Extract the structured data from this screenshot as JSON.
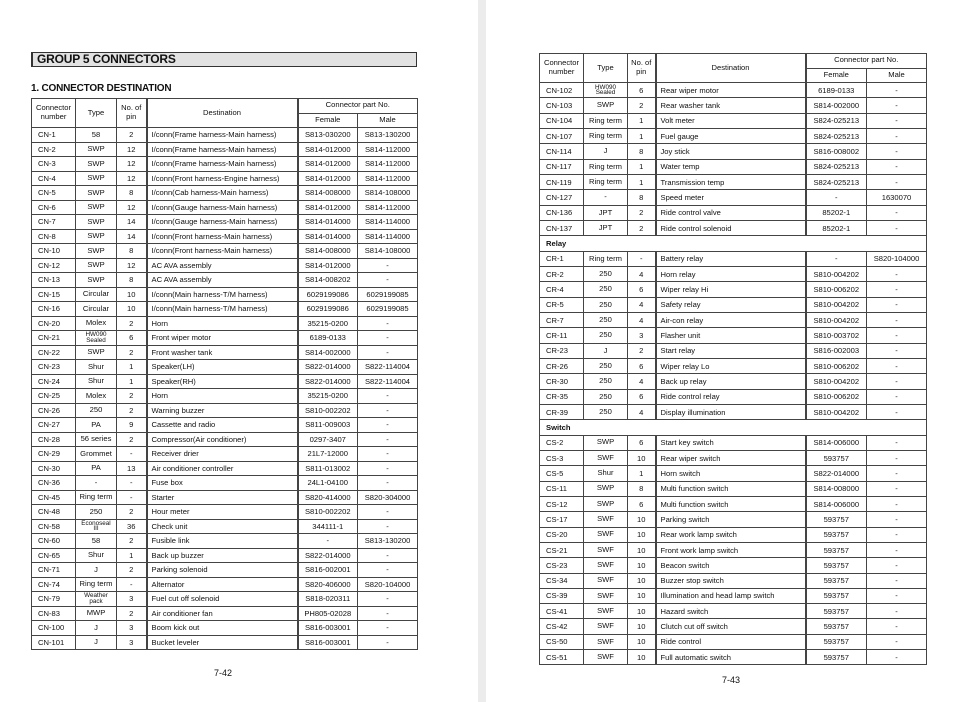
{
  "left_page": {
    "group_title": "GROUP 5  CONNECTORS",
    "section_title": "1. CONNECTOR DESTINATION",
    "page_number": "7-42"
  },
  "right_page": {
    "page_number": "7-43"
  },
  "table_header": {
    "connector_number": "Connector\nnumber",
    "type": "Type",
    "pins": "No. of\npin",
    "destination": "Destination",
    "part_no": "Connector part No.",
    "female": "Female",
    "male": "Male"
  },
  "left_rows": [
    [
      "CN-1",
      "58",
      "2",
      "I/conn(Frame harness-Main harness)",
      "S813-030200",
      "S813-130200"
    ],
    [
      "CN-2",
      "SWP",
      "12",
      "I/conn(Frame harness-Main harness)",
      "S814-012000",
      "S814-112000"
    ],
    [
      "CN-3",
      "SWP",
      "12",
      "I/conn(Frame harness-Main harness)",
      "S814-012000",
      "S814-112000"
    ],
    [
      "CN-4",
      "SWP",
      "12",
      "I/conn(Front harness-Engine harness)",
      "S814-012000",
      "S814-112000"
    ],
    [
      "CN-5",
      "SWP",
      "8",
      "I/conn(Cab harness-Main harness)",
      "S814-008000",
      "S814-108000"
    ],
    [
      "CN-6",
      "SWP",
      "12",
      "I/conn(Gauge harness-Main harness)",
      "S814-012000",
      "S814-112000"
    ],
    [
      "CN-7",
      "SWP",
      "14",
      "I/conn(Gauge harness-Main harness)",
      "S814-014000",
      "S814-114000"
    ],
    [
      "CN-8",
      "SWP",
      "14",
      "I/conn(Front harness-Main harness)",
      "S814-014000",
      "S814-114000"
    ],
    [
      "CN-10",
      "SWP",
      "8",
      "I/conn(Front harness-Main harness)",
      "S814-008000",
      "S814-108000"
    ],
    [
      "CN-12",
      "SWP",
      "12",
      "AC AVA assembly",
      "S814-012000",
      "-"
    ],
    [
      "CN-13",
      "SWP",
      "8",
      "AC AVA assembly",
      "S814-008202",
      "-"
    ],
    [
      "CN-15",
      "Circular",
      "10",
      "I/conn(Main harness-T/M harness)",
      "6029199086",
      "6029199085"
    ],
    [
      "CN-16",
      "Circular",
      "10",
      "I/conn(Main harness-T/M harness)",
      "6029199086",
      "6029199085"
    ],
    [
      "CN-20",
      "Molex",
      "2",
      "Horn",
      "35215-0200",
      "-"
    ],
    [
      "CN-21",
      "HW090\nSealed",
      "6",
      "Front wiper motor",
      "6189-0133",
      "-"
    ],
    [
      "CN-22",
      "SWP",
      "2",
      "Front washer tank",
      "S814-002000",
      "-"
    ],
    [
      "CN-23",
      "Shur",
      "1",
      "Speaker(LH)",
      "S822-014000",
      "S822-114004"
    ],
    [
      "CN-24",
      "Shur",
      "1",
      "Speaker(RH)",
      "S822-014000",
      "S822-114004"
    ],
    [
      "CN-25",
      "Molex",
      "2",
      "Horn",
      "35215-0200",
      "-"
    ],
    [
      "CN-26",
      "250",
      "2",
      "Warning buzzer",
      "S810-002202",
      "-"
    ],
    [
      "CN-27",
      "PA",
      "9",
      "Cassette and radio",
      "S811-009003",
      "-"
    ],
    [
      "CN-28",
      "56 series",
      "2",
      "Compressor(Air conditioner)",
      "0297-3407",
      "-"
    ],
    [
      "CN-29",
      "Grommet",
      "-",
      "Receiver drier",
      "21L7-12000",
      "-"
    ],
    [
      "CN-30",
      "PA",
      "13",
      "Air conditioner controller",
      "S811-013002",
      "-"
    ],
    [
      "CN-36",
      "-",
      "-",
      "Fuse box",
      "24L1-04100",
      "-"
    ],
    [
      "CN-45",
      "Ring term",
      "-",
      "Starter",
      "S820-414000",
      "S820-304000"
    ],
    [
      "CN-48",
      "250",
      "2",
      "Hour meter",
      "S810-002202",
      "-"
    ],
    [
      "CN-58",
      "Econoseal\nIII",
      "36",
      "Check unit",
      "344111-1",
      "-"
    ],
    [
      "CN-60",
      "58",
      "2",
      "Fusible link",
      "-",
      "S813-130200"
    ],
    [
      "CN-65",
      "Shur",
      "1",
      "Back up buzzer",
      "S822-014000",
      "-"
    ],
    [
      "CN-71",
      "J",
      "2",
      "Parking solenoid",
      "S816-002001",
      "-"
    ],
    [
      "CN-74",
      "Ring term",
      "-",
      "Alternator",
      "S820-406000",
      "S820-104000"
    ],
    [
      "CN-79",
      "Weather\npack",
      "3",
      "Fuel cut off solenoid",
      "S818-020311",
      "-"
    ],
    [
      "CN-83",
      "MWP",
      "2",
      "Air conditioner fan",
      "PH805-02028",
      "-"
    ],
    [
      "CN-100",
      "J",
      "3",
      "Boom kick out",
      "S816-003001",
      "-"
    ],
    [
      "CN-101",
      "J",
      "3",
      "Bucket leveler",
      "S816-003001",
      "-"
    ]
  ],
  "right_rows": [
    [
      "CN-102",
      "HW090\nSealed",
      "6",
      "Rear wiper motor",
      "6189-0133",
      "-"
    ],
    [
      "CN-103",
      "SWP",
      "2",
      "Rear washer tank",
      "S814-002000",
      "-"
    ],
    [
      "CN-104",
      "Ring term",
      "1",
      "Volt meter",
      "S824-025213",
      "-"
    ],
    [
      "CN-107",
      "Ring term",
      "1",
      "Fuel gauge",
      "S824-025213",
      "-"
    ],
    [
      "CN-114",
      "J",
      "8",
      "Joy stick",
      "S816-008002",
      "-"
    ],
    [
      "CN-117",
      "Ring term",
      "1",
      "Water temp",
      "S824-025213",
      "-"
    ],
    [
      "CN-119",
      "Ring term",
      "1",
      "Transmission temp",
      "S824-025213",
      "-"
    ],
    [
      "CN-127",
      "-",
      "8",
      "Speed meter",
      "-",
      "1630070"
    ],
    [
      "CN-136",
      "JPT",
      "2",
      "Ride control valve",
      "85202-1",
      "-"
    ],
    [
      "CN-137",
      "JPT",
      "2",
      "Ride control solenoid",
      "85202-1",
      "-"
    ],
    {
      "section": "Relay"
    },
    [
      "CR-1",
      "Ring term",
      "-",
      "Battery relay",
      "-",
      "S820-104000"
    ],
    [
      "CR-2",
      "250",
      "4",
      "Horn relay",
      "S810-004202",
      "-"
    ],
    [
      "CR-4",
      "250",
      "6",
      "Wiper relay Hi",
      "S810-006202",
      "-"
    ],
    [
      "CR-5",
      "250",
      "4",
      "Safety relay",
      "S810-004202",
      "-"
    ],
    [
      "CR-7",
      "250",
      "4",
      "Air-con relay",
      "S810-004202",
      "-"
    ],
    [
      "CR-11",
      "250",
      "3",
      "Flasher unit",
      "S810-003702",
      "-"
    ],
    [
      "CR-23",
      "J",
      "2",
      "Start relay",
      "S816-002003",
      "-"
    ],
    [
      "CR-26",
      "250",
      "6",
      "Wiper relay Lo",
      "S810-006202",
      "-"
    ],
    [
      "CR-30",
      "250",
      "4",
      "Back up relay",
      "S810-004202",
      "-"
    ],
    [
      "CR-35",
      "250",
      "6",
      "Ride control relay",
      "S810-006202",
      "-"
    ],
    [
      "CR-39",
      "250",
      "4",
      "Display illumination",
      "S810-004202",
      "-"
    ],
    {
      "section": "Switch"
    },
    [
      "CS-2",
      "SWP",
      "6",
      "Start key switch",
      "S814-006000",
      "-"
    ],
    [
      "CS-3",
      "SWF",
      "10",
      "Rear wiper switch",
      "593757",
      "-"
    ],
    [
      "CS-5",
      "Shur",
      "1",
      "Horn switch",
      "S822-014000",
      "-"
    ],
    [
      "CS-11",
      "SWP",
      "8",
      "Multi function switch",
      "S814-008000",
      "-"
    ],
    [
      "CS-12",
      "SWP",
      "6",
      "Multi function switch",
      "S814-006000",
      "-"
    ],
    [
      "CS-17",
      "SWF",
      "10",
      "Parking switch",
      "593757",
      "-"
    ],
    [
      "CS-20",
      "SWF",
      "10",
      "Rear work lamp switch",
      "593757",
      "-"
    ],
    [
      "CS-21",
      "SWF",
      "10",
      "Front work lamp switch",
      "593757",
      "-"
    ],
    [
      "CS-23",
      "SWF",
      "10",
      "Beacon switch",
      "593757",
      "-"
    ],
    [
      "CS-34",
      "SWF",
      "10",
      "Buzzer stop switch",
      "593757",
      "-"
    ],
    [
      "CS-39",
      "SWF",
      "10",
      "Illumination and head lamp switch",
      "593757",
      "-"
    ],
    [
      "CS-41",
      "SWF",
      "10",
      "Hazard switch",
      "593757",
      "-"
    ],
    [
      "CS-42",
      "SWF",
      "10",
      "Clutch cut off switch",
      "593757",
      "-"
    ],
    [
      "CS-50",
      "SWF",
      "10",
      "Ride control",
      "593757",
      "-"
    ],
    [
      "CS-51",
      "SWF",
      "10",
      "Full automatic switch",
      "593757",
      "-"
    ]
  ]
}
